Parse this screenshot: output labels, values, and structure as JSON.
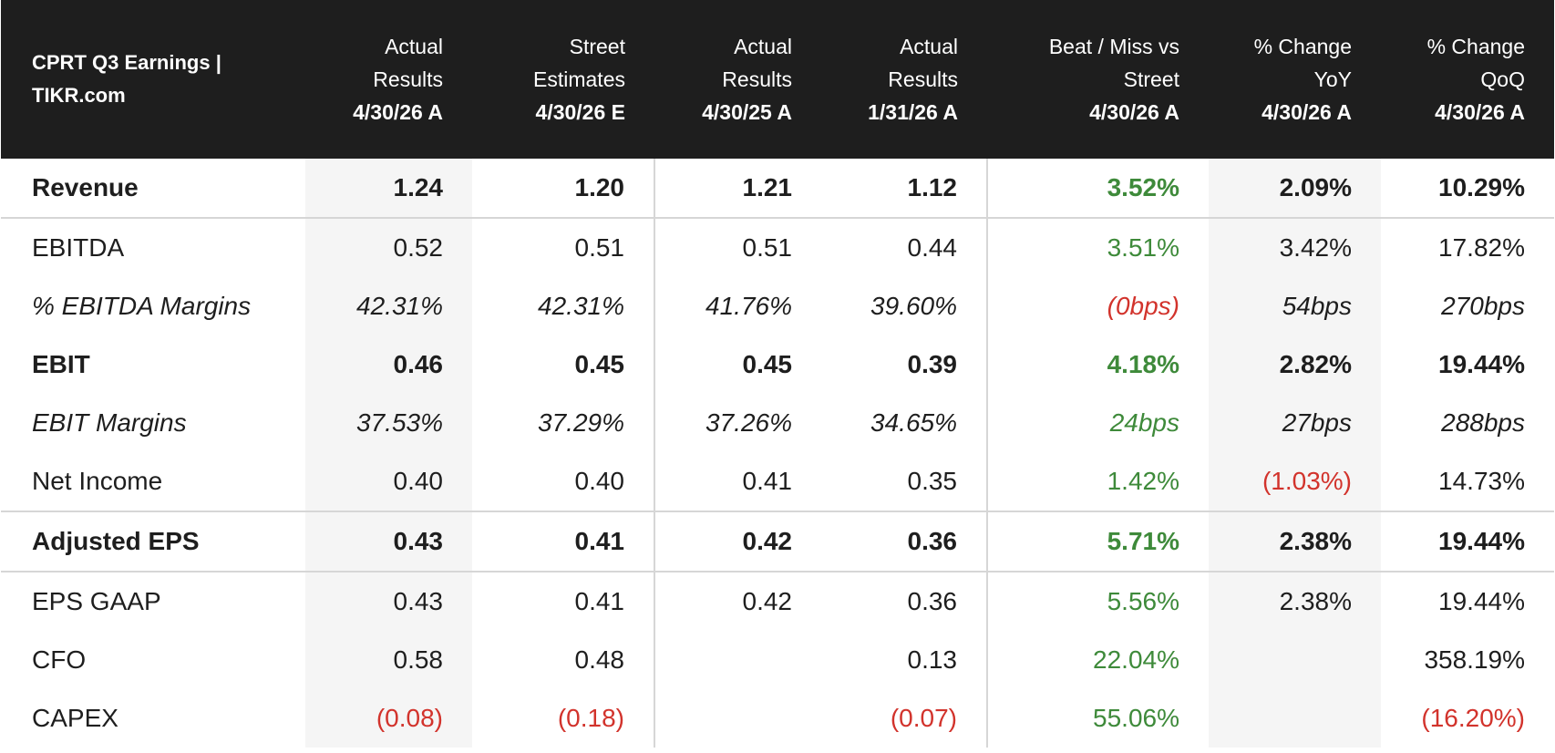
{
  "chart_data": {
    "type": "table",
    "title": "CPRT Q3 Earnings | TIKR.com",
    "columns": [
      {
        "line1": "Actual Results",
        "line2": "4/30/26 A"
      },
      {
        "line1": "Street Estimates",
        "line2": "4/30/26 E"
      },
      {
        "line1": "Actual Results",
        "line2": "4/30/25 A"
      },
      {
        "line1": "Actual Results",
        "line2": "1/31/26 A"
      },
      {
        "line1": "Beat / Miss vs Street",
        "line2": "4/30/26 A"
      },
      {
        "line1": "% Change YoY",
        "line2": "4/30/26 A"
      },
      {
        "line1": "% Change QoQ",
        "line2": "4/30/26 A"
      }
    ],
    "rows": [
      {
        "label": "Revenue",
        "style": "bold",
        "sep": true,
        "values": [
          "1.24",
          "1.20",
          "1.21",
          "1.12",
          "3.52%",
          "2.09%",
          "10.29%"
        ],
        "tones": [
          "",
          "",
          "",
          "",
          "pos",
          "",
          ""
        ]
      },
      {
        "label": "EBITDA",
        "style": "",
        "sep": false,
        "values": [
          "0.52",
          "0.51",
          "0.51",
          "0.44",
          "3.51%",
          "3.42%",
          "17.82%"
        ],
        "tones": [
          "",
          "",
          "",
          "",
          "pos",
          "",
          ""
        ]
      },
      {
        "label": "% EBITDA Margins",
        "style": "italic",
        "sep": false,
        "values": [
          "42.31%",
          "42.31%",
          "41.76%",
          "39.60%",
          "(0bps)",
          "54bps",
          "270bps"
        ],
        "tones": [
          "",
          "",
          "",
          "",
          "neg",
          "",
          ""
        ]
      },
      {
        "label": "EBIT",
        "style": "bold",
        "sep": false,
        "values": [
          "0.46",
          "0.45",
          "0.45",
          "0.39",
          "4.18%",
          "2.82%",
          "19.44%"
        ],
        "tones": [
          "",
          "",
          "",
          "",
          "pos",
          "",
          ""
        ]
      },
      {
        "label": "EBIT Margins",
        "style": "italic",
        "sep": false,
        "values": [
          "37.53%",
          "37.29%",
          "37.26%",
          "34.65%",
          "24bps",
          "27bps",
          "288bps"
        ],
        "tones": [
          "",
          "",
          "",
          "",
          "pos",
          "",
          ""
        ]
      },
      {
        "label": "Net Income",
        "style": "",
        "sep": true,
        "values": [
          "0.40",
          "0.40",
          "0.41",
          "0.35",
          "1.42%",
          "(1.03%)",
          "14.73%"
        ],
        "tones": [
          "",
          "",
          "",
          "",
          "pos",
          "neg",
          ""
        ]
      },
      {
        "label": "Adjusted EPS",
        "style": "bold",
        "sep": true,
        "values": [
          "0.43",
          "0.41",
          "0.42",
          "0.36",
          "5.71%",
          "2.38%",
          "19.44%"
        ],
        "tones": [
          "",
          "",
          "",
          "",
          "pos",
          "",
          ""
        ]
      },
      {
        "label": "EPS GAAP",
        "style": "",
        "sep": false,
        "values": [
          "0.43",
          "0.41",
          "0.42",
          "0.36",
          "5.56%",
          "2.38%",
          "19.44%"
        ],
        "tones": [
          "",
          "",
          "",
          "",
          "pos",
          "",
          ""
        ]
      },
      {
        "label": "CFO",
        "style": "",
        "sep": false,
        "values": [
          "0.58",
          "0.48",
          "",
          "0.13",
          "22.04%",
          "",
          "358.19%"
        ],
        "tones": [
          "",
          "",
          "",
          "",
          "pos",
          "",
          ""
        ]
      },
      {
        "label": "CAPEX",
        "style": "",
        "sep": false,
        "values": [
          "(0.08)",
          "(0.18)",
          "",
          "(0.07)",
          "55.06%",
          "",
          "(16.20%)"
        ],
        "tones": [
          "neg",
          "neg",
          "",
          "neg",
          "pos",
          "",
          "neg"
        ]
      }
    ]
  }
}
